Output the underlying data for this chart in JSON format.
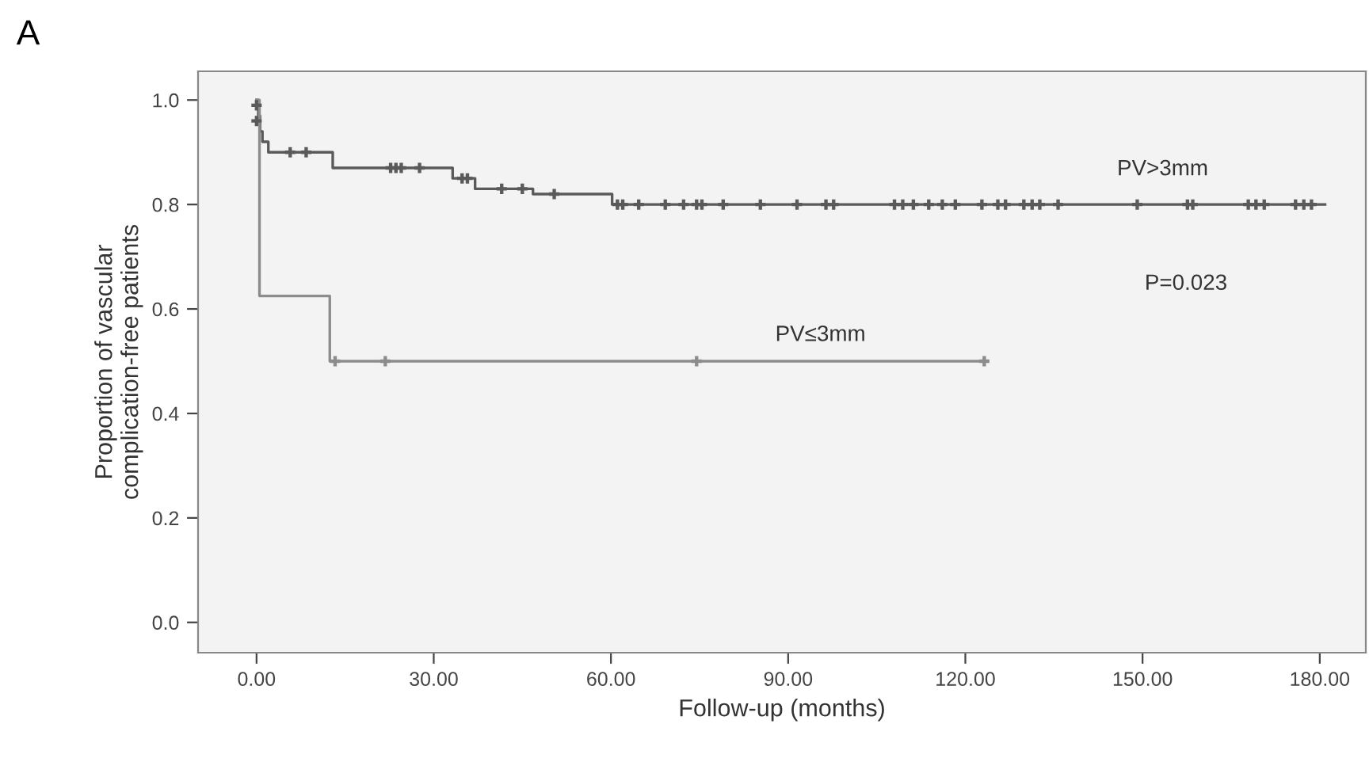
{
  "chart_data": {
    "type": "step",
    "title": "A",
    "xlabel": "Follow-up (months)",
    "ylabel": "Proportion of vascular\ncomplication-free patients",
    "series": [
      {
        "name": "PV>3mm",
        "color": "#5a5a5a",
        "x": [
          0,
          0.3,
          0.6,
          1,
          2,
          12.9,
          33.2,
          37,
          46.8,
          60.2,
          180.9
        ],
        "values": [
          1.0,
          0.97,
          0.94,
          0.92,
          0.9,
          0.87,
          0.85,
          0.83,
          0.82,
          0.8,
          0.8
        ]
      },
      {
        "name": "PV≤3mm",
        "color": "#8c8c8c",
        "x": [
          0,
          0.5,
          12.4,
          123.2
        ],
        "values": [
          1.0,
          0.625,
          0.5,
          0.5
        ]
      },
      {
        "type": "scatter",
        "color": "#5a5a5a",
        "marker": "cross",
        "x": [
          0,
          0,
          5.7,
          8.4,
          22.7,
          23.6,
          24.5,
          27.6,
          34.8,
          35.7,
          41.5,
          45,
          50.4,
          61.1,
          62,
          64.7,
          69.2,
          72.3,
          74.5,
          75.4,
          79,
          85.3,
          91.5,
          96.4,
          97.7,
          108,
          109.4,
          111.2,
          113.8,
          116.1,
          118.3,
          122.8,
          125.5,
          126.8,
          129.9,
          131.3,
          132.6,
          135.7,
          149.1,
          157.6,
          158.5,
          167.9,
          169.2,
          170.6,
          175.9,
          177.3,
          178.6
        ],
        "values": [
          0.99,
          0.96,
          0.9,
          0.9,
          0.87,
          0.87,
          0.87,
          0.87,
          0.85,
          0.85,
          0.83,
          0.83,
          0.82,
          0.8,
          0.8,
          0.8,
          0.8,
          0.8,
          0.8,
          0.8,
          0.8,
          0.8,
          0.8,
          0.8,
          0.8,
          0.8,
          0.8,
          0.8,
          0.8,
          0.8,
          0.8,
          0.8,
          0.8,
          0.8,
          0.8,
          0.8,
          0.8,
          0.8,
          0.8,
          0.8,
          0.8,
          0.8,
          0.8,
          0.8,
          0.8,
          0.8,
          0.8
        ]
      },
      {
        "type": "scatter",
        "color": "#8c8c8c",
        "marker": "cross",
        "x": [
          13.3,
          21.8,
          74.5,
          123.2
        ],
        "values": [
          0.5,
          0.5,
          0.5,
          0.5
        ]
      }
    ],
    "annotations": [
      "P=0.023"
    ],
    "xlim": [
      -9.9,
      187.8
    ],
    "ylim": [
      -0.058,
      1.055
    ],
    "xticks": [
      {
        "value": 0,
        "label": "0.00"
      },
      {
        "value": 30,
        "label": "30.00"
      },
      {
        "value": 60,
        "label": "60.00"
      },
      {
        "value": 90,
        "label": "90.00"
      },
      {
        "value": 120,
        "label": "120.00"
      },
      {
        "value": 150,
        "label": "150.00"
      },
      {
        "value": 180,
        "label": "180.00"
      }
    ],
    "yticks": [
      {
        "value": 0,
        "label": "0.0"
      },
      {
        "value": 0.2,
        "label": "0.2"
      },
      {
        "value": 0.4,
        "label": "0.4"
      },
      {
        "value": 0.6,
        "label": "0.6"
      },
      {
        "value": 0.8,
        "label": "0.8"
      },
      {
        "value": 1.0,
        "label": "1.0"
      }
    ],
    "grid": false
  }
}
